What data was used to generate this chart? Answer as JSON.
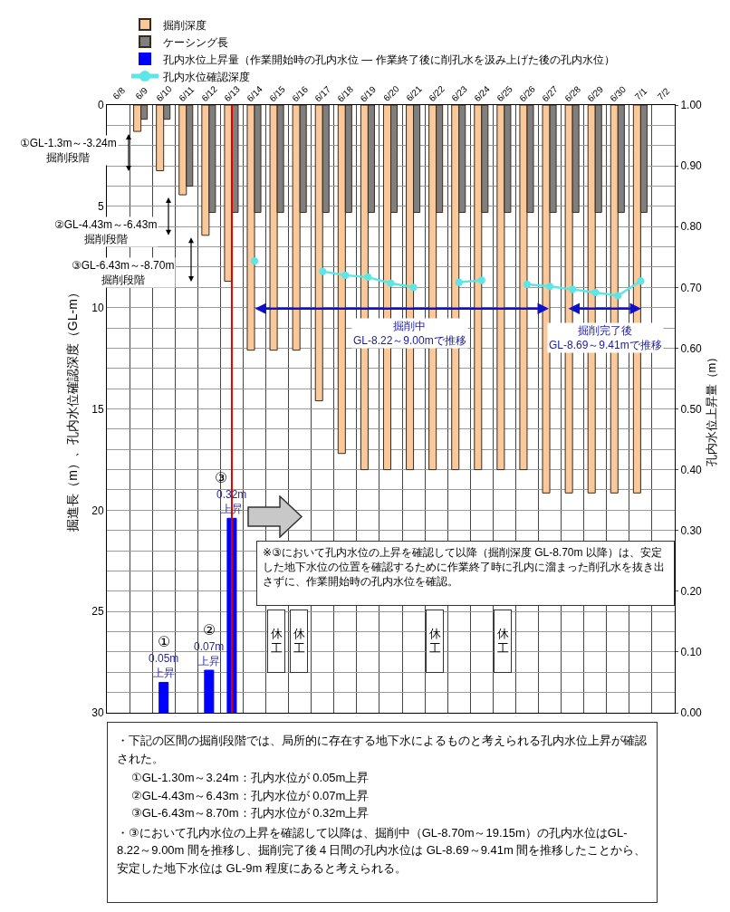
{
  "chart_data": {
    "type": "bar",
    "categories": [
      "6/8",
      "6/9",
      "6/10",
      "6/11",
      "6/12",
      "6/13",
      "6/14",
      "6/15",
      "6/16",
      "6/17",
      "6/18",
      "6/19",
      "6/20",
      "6/21",
      "6/22",
      "6/23",
      "6/24",
      "6/25",
      "6/26",
      "6/27",
      "6/28",
      "6/29",
      "6/30",
      "7/1",
      "7/2"
    ],
    "series": [
      {
        "name": "掘削深度",
        "color": "#f9c89b",
        "values": [
          null,
          1.3,
          3.24,
          4.43,
          6.43,
          8.7,
          12.1,
          12.1,
          12.1,
          14.6,
          17.2,
          18.0,
          18.0,
          18.0,
          18.0,
          18.0,
          18.0,
          18.0,
          18.0,
          19.15,
          19.15,
          19.15,
          19.15,
          19.15,
          null
        ]
      },
      {
        "name": "ケーシング長",
        "color": "#7f7f7f",
        "values": [
          null,
          0.7,
          0.7,
          4.0,
          5.3,
          5.3,
          5.3,
          5.3,
          5.3,
          5.3,
          5.3,
          5.3,
          5.3,
          5.3,
          5.3,
          5.3,
          5.3,
          5.3,
          5.3,
          5.3,
          5.3,
          5.3,
          5.3,
          5.3,
          null
        ]
      },
      {
        "name": "孔内水位上昇量（作業開始時の孔内水位 ― 作業終了後に削孔水を汲み上げた後の孔内水位）",
        "axis": "y2",
        "color": "#0000ff",
        "values": [
          null,
          null,
          0.05,
          null,
          0.07,
          0.32,
          null,
          null,
          null,
          null,
          null,
          null,
          null,
          null,
          null,
          null,
          null,
          null,
          null,
          null,
          null,
          null,
          null,
          null,
          null
        ],
        "value_labels": [
          null,
          null,
          "0.05m\n上昇",
          null,
          "0.07m\n上昇",
          "0.32m\n上昇",
          null,
          null,
          null,
          null,
          null,
          null,
          null,
          null,
          null,
          null,
          null,
          null,
          null,
          null,
          null,
          null,
          null,
          null,
          null
        ]
      },
      {
        "name": "孔内水位確認深度",
        "type": "line",
        "color": "#5ce6e6",
        "marker": "circle",
        "line_style": "solid",
        "values": [
          null,
          null,
          null,
          null,
          null,
          null,
          7.7,
          null,
          null,
          8.22,
          8.4,
          8.5,
          8.8,
          9.0,
          null,
          8.75,
          8.65,
          null,
          8.85,
          8.95,
          9.1,
          9.25,
          9.41,
          8.69,
          null
        ]
      }
    ],
    "ylim": [
      30,
      0
    ],
    "yticks": [
      0,
      {
        "value": 1,
        "label": null
      },
      {
        "value": 2,
        "label": null
      },
      {
        "value": 3,
        "label": null
      },
      {
        "value": 4,
        "label": null
      },
      5,
      {
        "value": 6,
        "label": null
      },
      {
        "value": 7,
        "label": null
      },
      {
        "value": 8,
        "label": null
      },
      {
        "value": 9,
        "label": null
      },
      10,
      {
        "value": 11,
        "label": null
      },
      {
        "value": 12,
        "label": null
      },
      {
        "value": 13,
        "label": null
      },
      {
        "value": 14,
        "label": null
      },
      15,
      {
        "value": 16,
        "label": null
      },
      {
        "value": 17,
        "label": null
      },
      {
        "value": 18,
        "label": null
      },
      {
        "value": 19,
        "label": null
      },
      20,
      {
        "value": 21,
        "label": null
      },
      {
        "value": 22,
        "label": null
      },
      {
        "value": 23,
        "label": null
      },
      {
        "value": 24,
        "label": null
      },
      25,
      {
        "value": 26,
        "label": null
      },
      {
        "value": 27,
        "label": null
      },
      {
        "value": 28,
        "label": null
      },
      {
        "value": 29,
        "label": null
      },
      30
    ],
    "y2lim": [
      0,
      1
    ],
    "y2ticks": [
      {
        "value": 0,
        "label": "0.00"
      },
      {
        "value": 0.1,
        "label": "0.10"
      },
      {
        "value": 0.2,
        "label": "0.20"
      },
      {
        "value": 0.3,
        "label": "0.30"
      },
      {
        "value": 0.4,
        "label": "0.40"
      },
      {
        "value": 0.5,
        "label": "0.50"
      },
      {
        "value": 0.6,
        "label": "0.60"
      },
      {
        "value": 0.7,
        "label": "0.70"
      },
      {
        "value": 0.8,
        "label": "0.80"
      },
      {
        "value": 0.9,
        "label": "0.90"
      },
      {
        "value": 1,
        "label": "1.00"
      }
    ],
    "ylabel": "掘進長（m）、孔内水位確認深度（GL-m）",
    "y2label": "孔内水位上昇量（m）",
    "grid": true,
    "legend": "top",
    "ref_lines": [
      {
        "axis": "x",
        "value": "6/13",
        "color": "#e00000"
      }
    ],
    "annotations": [
      "①GL-1.3m～-3.24m\n掘削段階",
      "②GL-4.43m～-6.43m\n掘削段階",
      "③GL-6.43m～-8.70m\n掘削段階",
      "掘削中\nGL-8.22～9.00mで推移",
      "掘削完了後\nGL-8.69～9.41mで推移",
      "※③において孔内水位の上昇を確認して以降（掘削深度 GL-8.70m 以降）は、安定した地下水位の位置を確認するために作業終了時に孔内に溜まった削孔水を抜き出さずに、作業開始時の孔内水位を確認。",
      "・下記の区間の掘削段階では、局所的に存在する地下水によるものと考えられる孔内水位上昇が確認された。",
      "①GL-1.30m～3.24m：孔内水位が 0.05m上昇",
      "②GL-4.43m～6.43m：孔内水位が 0.07m上昇",
      "③GL-6.43m～8.70m：孔内水位が 0.32m上昇",
      "・③において孔内水位の上昇を確認して以降は、掘削中（GL-8.70m～19.15m）の孔内水位はGL-8.22～9.00m 間を推移し、掘削完了後４日間の孔内水位は GL-8.69～9.41m 間を推移したことから、安定した地下水位は GL-9m 程度にあると考えられる。",
      "①",
      "②",
      "③",
      "休工",
      "休工",
      "休工",
      "休工"
    ]
  }
}
